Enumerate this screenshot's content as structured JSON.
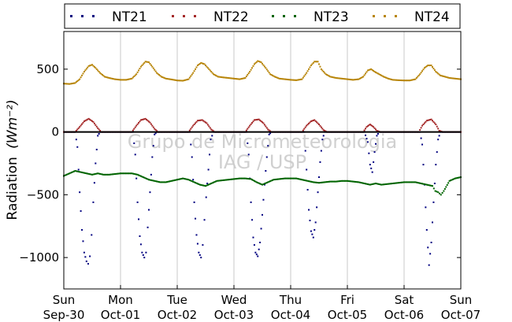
{
  "chart_data": {
    "type": "scatter",
    "ylabel": "Radiation",
    "ylabel_unit": "(Wm⁻²)",
    "ylim": [
      -1250,
      800
    ],
    "yticks": [
      {
        "value": 500,
        "label": "500"
      },
      {
        "value": 0,
        "label": "0"
      },
      {
        "value": -500,
        "label": "−500"
      },
      {
        "value": -1000,
        "label": "−1000"
      }
    ],
    "xlim": [
      0,
      7
    ],
    "xticks": [
      {
        "value": 0,
        "line1": "Sun",
        "line2": "Sep-30"
      },
      {
        "value": 1,
        "line1": "Mon",
        "line2": "Oct-01"
      },
      {
        "value": 2,
        "line1": "Tue",
        "line2": "Oct-02"
      },
      {
        "value": 3,
        "line1": "Wed",
        "line2": "Oct-03"
      },
      {
        "value": 4,
        "line1": "Thu",
        "line2": "Oct-04"
      },
      {
        "value": 5,
        "line1": "Fri",
        "line2": "Oct-05"
      },
      {
        "value": 6,
        "line1": "Sat",
        "line2": "Oct-06"
      },
      {
        "value": 7,
        "line1": "Sun",
        "line2": "Oct-07"
      }
    ],
    "grid": "vertical",
    "zero_line": true,
    "legend_position": "top",
    "watermark": [
      "Grupo de Micrometeorologia",
      "IAG / USP"
    ],
    "series": [
      {
        "name": "NT21",
        "color": "#000080",
        "points": [
          [
            0.0,
            0
          ],
          [
            0.1,
            0
          ],
          [
            0.2,
            0
          ],
          [
            0.24,
            -120
          ],
          [
            0.28,
            -480
          ],
          [
            0.32,
            -780
          ],
          [
            0.36,
            -960
          ],
          [
            0.4,
            -1030
          ],
          [
            0.43,
            -1050
          ],
          [
            0.46,
            -990
          ],
          [
            0.49,
            -820
          ],
          [
            0.52,
            -560
          ],
          [
            0.56,
            -250
          ],
          [
            0.6,
            -30
          ],
          [
            0.64,
            0
          ],
          [
            0.8,
            0
          ],
          [
            1.0,
            0
          ],
          [
            1.22,
            0
          ],
          [
            1.26,
            -180
          ],
          [
            1.3,
            -560
          ],
          [
            1.34,
            -830
          ],
          [
            1.38,
            -960
          ],
          [
            1.42,
            -1000
          ],
          [
            1.45,
            -960
          ],
          [
            1.48,
            -760
          ],
          [
            1.52,
            -480
          ],
          [
            1.56,
            -200
          ],
          [
            1.6,
            -20
          ],
          [
            1.64,
            0
          ],
          [
            1.8,
            0
          ],
          [
            2.0,
            0
          ],
          [
            2.22,
            0
          ],
          [
            2.26,
            -200
          ],
          [
            2.3,
            -560
          ],
          [
            2.34,
            -820
          ],
          [
            2.38,
            -960
          ],
          [
            2.42,
            -1000
          ],
          [
            2.45,
            -900
          ],
          [
            2.48,
            -700
          ],
          [
            2.51,
            -520
          ],
          [
            2.55,
            -300
          ],
          [
            2.59,
            -60
          ],
          [
            2.64,
            0
          ],
          [
            2.8,
            0
          ],
          [
            3.0,
            0
          ],
          [
            3.22,
            0
          ],
          [
            3.26,
            -180
          ],
          [
            3.3,
            -560
          ],
          [
            3.34,
            -840
          ],
          [
            3.38,
            -960
          ],
          [
            3.42,
            -990
          ],
          [
            3.46,
            -880
          ],
          [
            3.5,
            -660
          ],
          [
            3.54,
            -420
          ],
          [
            3.58,
            -200
          ],
          [
            3.62,
            -20
          ],
          [
            3.66,
            0
          ],
          [
            3.8,
            0
          ],
          [
            4.0,
            0
          ],
          [
            4.24,
            0
          ],
          [
            4.28,
            -300
          ],
          [
            4.32,
            -620
          ],
          [
            4.36,
            -790
          ],
          [
            4.4,
            -840
          ],
          [
            4.44,
            -720
          ],
          [
            4.48,
            -480
          ],
          [
            4.52,
            -240
          ],
          [
            4.56,
            -60
          ],
          [
            4.6,
            0
          ],
          [
            4.8,
            0
          ],
          [
            5.0,
            0
          ],
          [
            5.3,
            0
          ],
          [
            5.36,
            -80
          ],
          [
            5.4,
            -260
          ],
          [
            5.44,
            -320
          ],
          [
            5.48,
            -160
          ],
          [
            5.52,
            -30
          ],
          [
            5.56,
            0
          ],
          [
            5.8,
            0
          ],
          [
            6.0,
            0
          ],
          [
            6.28,
            0
          ],
          [
            6.32,
            -100
          ],
          [
            6.36,
            -420
          ],
          [
            6.4,
            -780
          ],
          [
            6.44,
            -1060
          ],
          [
            6.48,
            -880
          ],
          [
            6.52,
            -560
          ],
          [
            6.56,
            -260
          ],
          [
            6.6,
            -60
          ],
          [
            6.64,
            0
          ],
          [
            6.8,
            0
          ],
          [
            7.0,
            0
          ]
        ]
      },
      {
        "name": "NT22",
        "color": "#a52a2a",
        "points": [
          [
            0.0,
            0
          ],
          [
            0.2,
            0
          ],
          [
            0.28,
            40
          ],
          [
            0.36,
            85
          ],
          [
            0.44,
            105
          ],
          [
            0.52,
            80
          ],
          [
            0.6,
            30
          ],
          [
            0.66,
            0
          ],
          [
            0.9,
            0
          ],
          [
            1.2,
            0
          ],
          [
            1.28,
            50
          ],
          [
            1.36,
            95
          ],
          [
            1.44,
            105
          ],
          [
            1.52,
            75
          ],
          [
            1.6,
            25
          ],
          [
            1.66,
            0
          ],
          [
            1.9,
            0
          ],
          [
            2.2,
            0
          ],
          [
            2.28,
            50
          ],
          [
            2.36,
            90
          ],
          [
            2.44,
            95
          ],
          [
            2.52,
            70
          ],
          [
            2.6,
            20
          ],
          [
            2.66,
            0
          ],
          [
            2.9,
            0
          ],
          [
            3.2,
            0
          ],
          [
            3.28,
            50
          ],
          [
            3.36,
            95
          ],
          [
            3.44,
            100
          ],
          [
            3.52,
            70
          ],
          [
            3.6,
            20
          ],
          [
            3.66,
            0
          ],
          [
            3.9,
            0
          ],
          [
            4.2,
            0
          ],
          [
            4.28,
            50
          ],
          [
            4.36,
            85
          ],
          [
            4.42,
            95
          ],
          [
            4.5,
            60
          ],
          [
            4.58,
            15
          ],
          [
            4.64,
            0
          ],
          [
            4.9,
            0
          ],
          [
            5.28,
            0
          ],
          [
            5.34,
            40
          ],
          [
            5.4,
            60
          ],
          [
            5.46,
            40
          ],
          [
            5.52,
            10
          ],
          [
            5.58,
            0
          ],
          [
            5.9,
            0
          ],
          [
            6.26,
            0
          ],
          [
            6.32,
            50
          ],
          [
            6.4,
            90
          ],
          [
            6.48,
            100
          ],
          [
            6.56,
            60
          ],
          [
            6.62,
            10
          ],
          [
            6.68,
            0
          ],
          [
            7.0,
            0
          ]
        ]
      },
      {
        "name": "NT23",
        "color": "#006400",
        "points": [
          [
            0.0,
            -350
          ],
          [
            0.1,
            -330
          ],
          [
            0.2,
            -310
          ],
          [
            0.3,
            -320
          ],
          [
            0.4,
            -330
          ],
          [
            0.5,
            -340
          ],
          [
            0.6,
            -330
          ],
          [
            0.7,
            -340
          ],
          [
            0.8,
            -340
          ],
          [
            0.9,
            -335
          ],
          [
            1.0,
            -330
          ],
          [
            1.1,
            -330
          ],
          [
            1.2,
            -330
          ],
          [
            1.3,
            -340
          ],
          [
            1.4,
            -360
          ],
          [
            1.5,
            -380
          ],
          [
            1.6,
            -390
          ],
          [
            1.7,
            -400
          ],
          [
            1.8,
            -400
          ],
          [
            1.9,
            -390
          ],
          [
            2.0,
            -380
          ],
          [
            2.1,
            -370
          ],
          [
            2.2,
            -380
          ],
          [
            2.3,
            -400
          ],
          [
            2.4,
            -420
          ],
          [
            2.5,
            -430
          ],
          [
            2.6,
            -410
          ],
          [
            2.7,
            -390
          ],
          [
            2.8,
            -385
          ],
          [
            2.9,
            -380
          ],
          [
            3.0,
            -375
          ],
          [
            3.1,
            -370
          ],
          [
            3.2,
            -370
          ],
          [
            3.3,
            -375
          ],
          [
            3.4,
            -400
          ],
          [
            3.5,
            -420
          ],
          [
            3.6,
            -400
          ],
          [
            3.7,
            -380
          ],
          [
            3.8,
            -375
          ],
          [
            3.9,
            -370
          ],
          [
            4.0,
            -370
          ],
          [
            4.1,
            -370
          ],
          [
            4.2,
            -380
          ],
          [
            4.3,
            -390
          ],
          [
            4.4,
            -400
          ],
          [
            4.5,
            -405
          ],
          [
            4.6,
            -400
          ],
          [
            4.7,
            -395
          ],
          [
            4.8,
            -395
          ],
          [
            4.9,
            -390
          ],
          [
            5.0,
            -390
          ],
          [
            5.1,
            -395
          ],
          [
            5.2,
            -400
          ],
          [
            5.3,
            -410
          ],
          [
            5.4,
            -420
          ],
          [
            5.5,
            -410
          ],
          [
            5.6,
            -420
          ],
          [
            5.7,
            -415
          ],
          [
            5.8,
            -410
          ],
          [
            5.9,
            -405
          ],
          [
            6.0,
            -400
          ],
          [
            6.1,
            -400
          ],
          [
            6.2,
            -400
          ],
          [
            6.3,
            -410
          ],
          [
            6.4,
            -420
          ],
          [
            6.5,
            -430
          ],
          [
            6.55,
            -470
          ],
          [
            6.6,
            -480
          ],
          [
            6.65,
            -500
          ],
          [
            6.7,
            -470
          ],
          [
            6.8,
            -390
          ],
          [
            6.9,
            -370
          ],
          [
            7.0,
            -360
          ]
        ]
      },
      {
        "name": "NT24",
        "color": "#b8860b",
        "points": [
          [
            0.0,
            385
          ],
          [
            0.1,
            382
          ],
          [
            0.2,
            390
          ],
          [
            0.28,
            420
          ],
          [
            0.36,
            480
          ],
          [
            0.44,
            525
          ],
          [
            0.5,
            535
          ],
          [
            0.56,
            510
          ],
          [
            0.64,
            470
          ],
          [
            0.72,
            440
          ],
          [
            0.8,
            430
          ],
          [
            0.9,
            420
          ],
          [
            1.0,
            415
          ],
          [
            1.1,
            415
          ],
          [
            1.2,
            425
          ],
          [
            1.28,
            460
          ],
          [
            1.36,
            520
          ],
          [
            1.44,
            560
          ],
          [
            1.5,
            555
          ],
          [
            1.56,
            520
          ],
          [
            1.64,
            470
          ],
          [
            1.72,
            440
          ],
          [
            1.8,
            425
          ],
          [
            1.9,
            418
          ],
          [
            2.0,
            410
          ],
          [
            2.1,
            408
          ],
          [
            2.2,
            420
          ],
          [
            2.28,
            470
          ],
          [
            2.36,
            530
          ],
          [
            2.42,
            550
          ],
          [
            2.48,
            540
          ],
          [
            2.56,
            500
          ],
          [
            2.64,
            460
          ],
          [
            2.72,
            440
          ],
          [
            2.8,
            435
          ],
          [
            2.9,
            430
          ],
          [
            3.0,
            425
          ],
          [
            3.1,
            420
          ],
          [
            3.2,
            430
          ],
          [
            3.28,
            480
          ],
          [
            3.36,
            540
          ],
          [
            3.42,
            565
          ],
          [
            3.48,
            555
          ],
          [
            3.56,
            510
          ],
          [
            3.64,
            460
          ],
          [
            3.72,
            440
          ],
          [
            3.8,
            425
          ],
          [
            3.9,
            420
          ],
          [
            4.0,
            415
          ],
          [
            4.1,
            412
          ],
          [
            4.2,
            420
          ],
          [
            4.28,
            470
          ],
          [
            4.36,
            530
          ],
          [
            4.42,
            560
          ],
          [
            4.48,
            560
          ],
          [
            4.54,
            500
          ],
          [
            4.62,
            460
          ],
          [
            4.7,
            440
          ],
          [
            4.8,
            430
          ],
          [
            4.9,
            425
          ],
          [
            5.0,
            420
          ],
          [
            5.1,
            415
          ],
          [
            5.2,
            420
          ],
          [
            5.28,
            440
          ],
          [
            5.36,
            490
          ],
          [
            5.42,
            500
          ],
          [
            5.48,
            480
          ],
          [
            5.56,
            460
          ],
          [
            5.64,
            440
          ],
          [
            5.72,
            425
          ],
          [
            5.8,
            415
          ],
          [
            5.9,
            412
          ],
          [
            6.0,
            410
          ],
          [
            6.1,
            410
          ],
          [
            6.2,
            420
          ],
          [
            6.28,
            460
          ],
          [
            6.36,
            510
          ],
          [
            6.42,
            530
          ],
          [
            6.48,
            530
          ],
          [
            6.56,
            480
          ],
          [
            6.64,
            450
          ],
          [
            6.72,
            440
          ],
          [
            6.8,
            430
          ],
          [
            6.9,
            425
          ],
          [
            7.0,
            420
          ]
        ]
      }
    ]
  }
}
